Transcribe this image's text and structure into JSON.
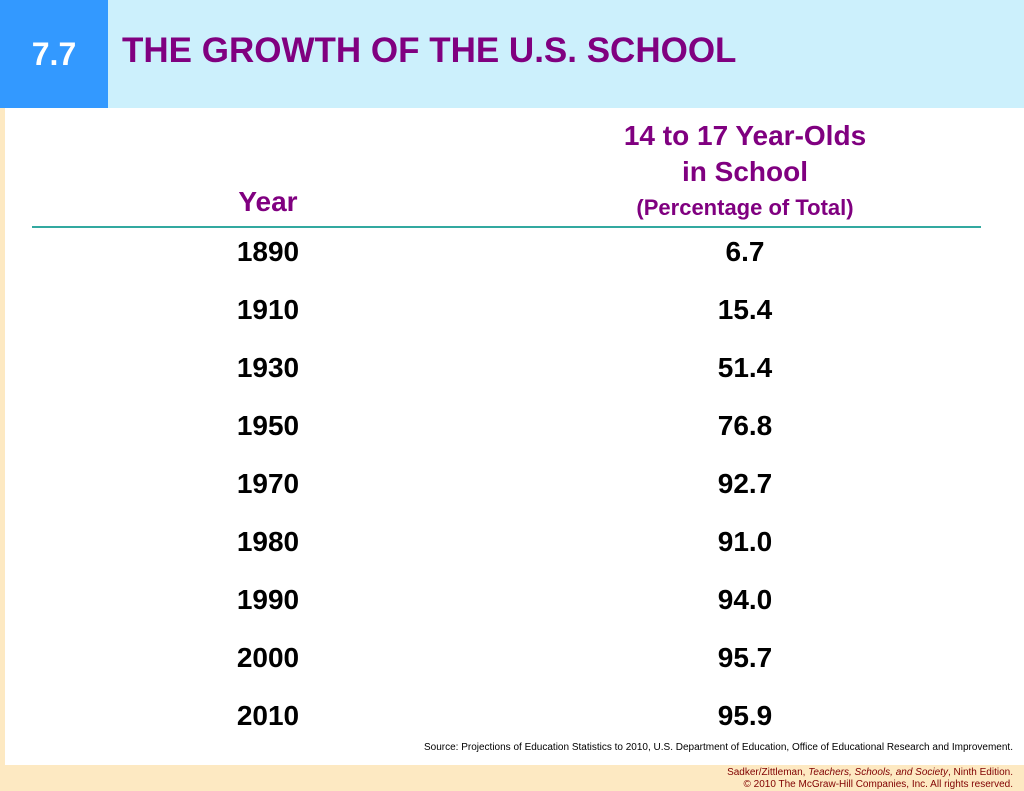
{
  "slide": {
    "number": "7.7",
    "title": "THE GROWTH OF THE U.S. SCHOOL"
  },
  "table": {
    "year_header": "Year",
    "pct_header_line1": "14 to 17 Year-Olds",
    "pct_header_line2": "in School",
    "pct_header_line3": "(Percentage of Total)",
    "rows": [
      {
        "year": "1890",
        "pct": "6.7"
      },
      {
        "year": "1910",
        "pct": "15.4"
      },
      {
        "year": "1930",
        "pct": "51.4"
      },
      {
        "year": "1950",
        "pct": "76.8"
      },
      {
        "year": "1970",
        "pct": "92.7"
      },
      {
        "year": "1980",
        "pct": "91.0"
      },
      {
        "year": "1990",
        "pct": "94.0"
      },
      {
        "year": "2000",
        "pct": "95.7"
      },
      {
        "year": "2010",
        "pct": "95.9"
      }
    ]
  },
  "source": "Source: Projections of Education Statistics to 2010, U.S. Department of Education, Office of Educational Research and Improvement.",
  "footer": {
    "authors": "Sadker/Zittleman, ",
    "book_title": "Teachers, Schools, and Society",
    "edition": ", Ninth Edition.",
    "copyright": "© 2010 The McGraw-Hill Companies, Inc. All rights reserved."
  },
  "colors": {
    "header_bg": "#ccf0fc",
    "badge_bg": "#3399ff",
    "title": "#800080",
    "footer_bg": "#fde9c2",
    "rule": "#33a9a0"
  }
}
